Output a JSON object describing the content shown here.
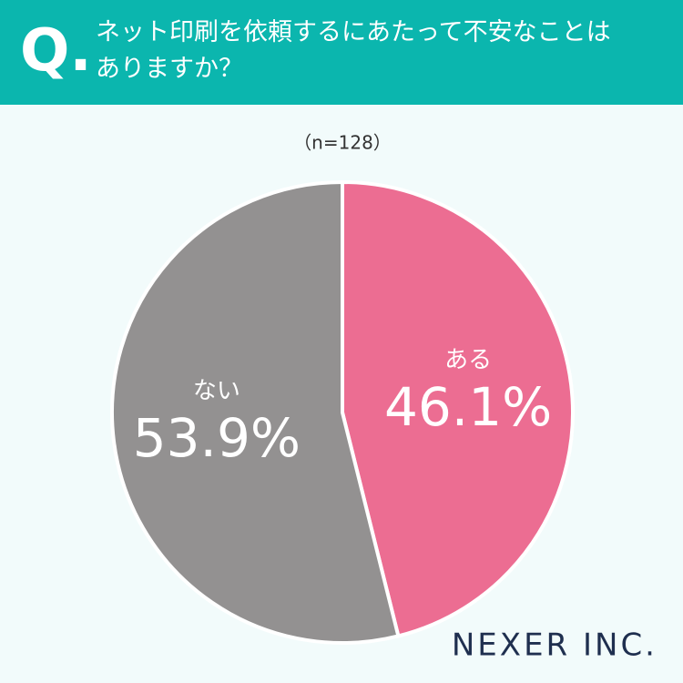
{
  "header": {
    "badge": "Q."
  },
  "chart_data": {
    "type": "pie",
    "title": "ネット印刷を依頼するにあたって不安なことはありますか？",
    "subtitle": "（n=128）",
    "categories": [
      "ある",
      "ない"
    ],
    "values": [
      46.1,
      53.9
    ],
    "value_labels": [
      "46.1%",
      "53.9%"
    ],
    "colors": [
      "#ec6d92",
      "#939191"
    ]
  },
  "footer": {
    "logo": "NEXER INC."
  }
}
